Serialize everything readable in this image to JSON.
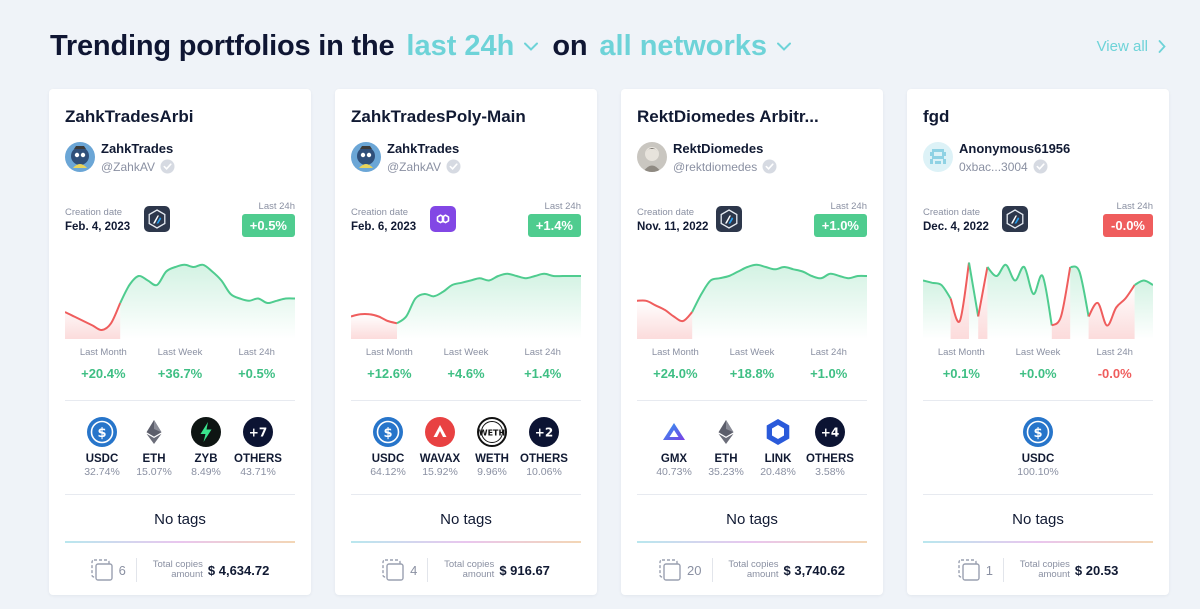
{
  "header": {
    "title_prefix": "Trending portfolios in the",
    "period": "last 24h",
    "on": "on",
    "network": "all networks",
    "view_all": "View all"
  },
  "labels": {
    "creation_date": "Creation date",
    "last_24h": "Last 24h",
    "last_month": "Last Month",
    "last_week": "Last Week",
    "total_copies_line1": "Total copies",
    "total_copies_line2": "amount"
  },
  "cards": [
    {
      "title": "ZahkTradesArbi",
      "owner": "ZahkTrades",
      "handle": "@ZahkAV",
      "creation_date": "Feb. 4, 2023",
      "network": "arbitrum",
      "change_24h": "+0.5%",
      "change_24h_positive": true,
      "last_month": "+20.4%",
      "last_week": "+36.7%",
      "last_24h": "+0.5%",
      "chart_data": {
        "type": "area",
        "y": [
          52,
          50,
          48,
          46,
          44,
          47,
          56,
          64,
          68,
          66,
          64,
          70,
          72,
          73,
          72,
          73,
          70,
          66,
          60,
          58,
          57,
          58,
          56,
          57,
          58,
          58
        ],
        "split_index": 6
      },
      "assets": [
        {
          "symbol": "USDC",
          "pct": "32.74%",
          "icon": "usdc-icon"
        },
        {
          "symbol": "ETH",
          "pct": "15.07%",
          "icon": "eth-icon"
        },
        {
          "symbol": "ZYB",
          "pct": "8.49%",
          "icon": "zyb-icon"
        },
        {
          "symbol": "OTHERS",
          "pct": "43.71%",
          "icon": "others-icon",
          "count": "+7"
        }
      ],
      "tags": "No tags",
      "copies": "6",
      "total": "$ 4,634.72"
    },
    {
      "title": "ZahkTradesPoly-Main",
      "owner": "ZahkTrades",
      "handle": "@ZahkAV",
      "creation_date": "Feb. 6, 2023",
      "network": "polygon",
      "change_24h": "+1.4%",
      "change_24h_positive": true,
      "last_month": "+12.6%",
      "last_week": "+4.6%",
      "last_24h": "+1.4%",
      "chart_data": {
        "type": "area",
        "y": [
          50,
          51,
          51,
          50,
          48,
          47,
          50,
          58,
          60,
          59,
          61,
          64,
          65,
          66,
          67,
          66,
          68,
          69,
          68,
          67,
          68,
          69,
          68,
          68,
          68,
          68
        ],
        "split_index": 5
      },
      "assets": [
        {
          "symbol": "USDC",
          "pct": "64.12%",
          "icon": "usdc-icon"
        },
        {
          "symbol": "WAVAX",
          "pct": "15.92%",
          "icon": "wavax-icon"
        },
        {
          "symbol": "WETH",
          "pct": "9.96%",
          "icon": "weth-icon"
        },
        {
          "symbol": "OTHERS",
          "pct": "10.06%",
          "icon": "others-icon",
          "count": "+2"
        }
      ],
      "tags": "No tags",
      "copies": "4",
      "total": "$ 916.67"
    },
    {
      "title": "RektDiomedes Arbitr...",
      "owner": "RektDiomedes",
      "handle": "@rektdiomedes",
      "creation_date": "Nov. 11, 2022",
      "network": "arbitrum",
      "change_24h": "+1.0%",
      "change_24h_positive": true,
      "last_month": "+24.0%",
      "last_week": "+18.8%",
      "last_24h": "+1.0%",
      "chart_data": {
        "type": "area",
        "y": [
          57,
          57,
          55,
          53,
          50,
          48,
          52,
          60,
          66,
          67,
          68,
          70,
          72,
          73,
          72,
          71,
          72,
          71,
          70,
          68,
          67,
          69,
          68,
          67,
          68,
          68
        ],
        "split_index": 6
      },
      "assets": [
        {
          "symbol": "GMX",
          "pct": "40.73%",
          "icon": "gmx-icon"
        },
        {
          "symbol": "ETH",
          "pct": "35.23%",
          "icon": "eth-icon"
        },
        {
          "symbol": "LINK",
          "pct": "20.48%",
          "icon": "link-icon"
        },
        {
          "symbol": "OTHERS",
          "pct": "3.58%",
          "icon": "others-icon",
          "count": "+4"
        }
      ],
      "tags": "No tags",
      "copies": "20",
      "total": "$ 3,740.62"
    },
    {
      "title": "fgd",
      "owner": "Anonymous61956",
      "handle": "0xbac...3004",
      "creation_date": "Dec. 4, 2022",
      "network": "arbitrum",
      "change_24h": "-0.0%",
      "change_24h_positive": false,
      "last_month": "+0.1%",
      "last_week": "+0.0%",
      "last_24h": "-0.0%",
      "chart_data": {
        "type": "area",
        "y": [
          66,
          65,
          64,
          58,
          48,
          74,
          50,
          72,
          68,
          73,
          66,
          72,
          60,
          68,
          46,
          50,
          72,
          70,
          50,
          56,
          46,
          54,
          58,
          64,
          66,
          64
        ],
        "split_index": null
      },
      "assets": [
        {
          "symbol": "USDC",
          "pct": "100.10%",
          "icon": "usdc-icon"
        }
      ],
      "tags": "No tags",
      "copies": "1",
      "total": "$ 20.53"
    }
  ],
  "colors": {
    "accent": "#6ed3d8",
    "positive": "#3fbf84",
    "negative": "#ef5d5d",
    "badge_positive": "#4fcc8f"
  }
}
